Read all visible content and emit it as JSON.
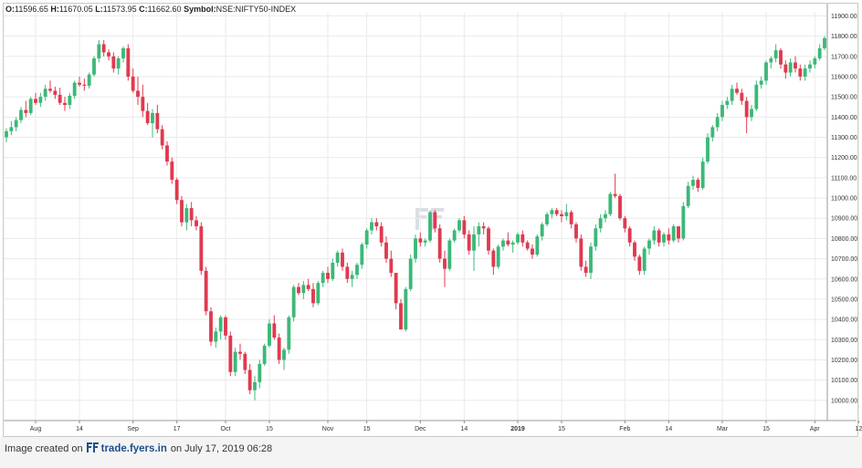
{
  "info": {
    "open_label": "O:",
    "open": "11596.65",
    "high_label": "H:",
    "high": "11670.05",
    "low_label": "L:",
    "low": "11573.95",
    "close_label": "C:",
    "close": "11662.60",
    "symbol_label": "Symbol:",
    "symbol": "NSE:NIFTY50-INDEX"
  },
  "footer": {
    "prefix": "Image created on",
    "site": "trade.fyers.in",
    "suffix": "on July 17, 2019 06:28"
  },
  "colors": {
    "up": "#3cb878",
    "down": "#e0394f",
    "grid": "#eaeaea"
  },
  "chart_data": {
    "type": "candlestick",
    "ylim": [
      9900,
      11920
    ],
    "y_ticks": [
      10000,
      10100,
      10200,
      10300,
      10400,
      10500,
      10600,
      10700,
      10800,
      10900,
      11000,
      11100,
      11200,
      11300,
      11400,
      11500,
      11600,
      11700,
      11800,
      11900
    ],
    "y_tick_labels": [
      "10000.00",
      "10100.00",
      "10200.00",
      "10300.00",
      "10400.00",
      "10500.00",
      "10600.00",
      "10700.00",
      "10800.00",
      "10900.00",
      "11000.00",
      "11100.00",
      "11200.00",
      "11300.00",
      "11400.00",
      "11500.00",
      "11600.00",
      "11700.00",
      "11800.00",
      "11900.00"
    ],
    "x_tick_labels": [
      {
        "label": "Aug",
        "index": 6,
        "bold": false
      },
      {
        "label": "14",
        "index": 15,
        "bold": false
      },
      {
        "label": "Sep",
        "index": 26,
        "bold": false
      },
      {
        "label": "17",
        "index": 35,
        "bold": false
      },
      {
        "label": "Oct",
        "index": 45,
        "bold": false
      },
      {
        "label": "15",
        "index": 54,
        "bold": false
      },
      {
        "label": "Nov",
        "index": 66,
        "bold": false
      },
      {
        "label": "15",
        "index": 74,
        "bold": false
      },
      {
        "label": "Dec",
        "index": 85,
        "bold": false
      },
      {
        "label": "14",
        "index": 94,
        "bold": false
      },
      {
        "label": "2019",
        "index": 105,
        "bold": true
      },
      {
        "label": "15",
        "index": 114,
        "bold": false
      },
      {
        "label": "Feb",
        "index": 127,
        "bold": false
      },
      {
        "label": "14",
        "index": 136,
        "bold": false
      },
      {
        "label": "Mar",
        "index": 147,
        "bold": false
      },
      {
        "label": "15",
        "index": 156,
        "bold": false
      },
      {
        "label": "Apr",
        "index": 166,
        "bold": false
      },
      {
        "label": "12",
        "index": 175,
        "bold": false
      }
    ],
    "candles": [
      [
        11300,
        11345,
        11275,
        11330
      ],
      [
        11330,
        11380,
        11310,
        11350
      ],
      [
        11350,
        11400,
        11330,
        11385
      ],
      [
        11385,
        11450,
        11370,
        11435
      ],
      [
        11435,
        11480,
        11400,
        11420
      ],
      [
        11420,
        11500,
        11410,
        11490
      ],
      [
        11490,
        11520,
        11460,
        11470
      ],
      [
        11470,
        11520,
        11450,
        11500
      ],
      [
        11500,
        11560,
        11480,
        11540
      ],
      [
        11540,
        11580,
        11520,
        11530
      ],
      [
        11530,
        11550,
        11490,
        11510
      ],
      [
        11510,
        11545,
        11460,
        11470
      ],
      [
        11470,
        11500,
        11430,
        11460
      ],
      [
        11460,
        11520,
        11440,
        11505
      ],
      [
        11505,
        11580,
        11490,
        11570
      ],
      [
        11570,
        11600,
        11550,
        11560
      ],
      [
        11560,
        11590,
        11530,
        11555
      ],
      [
        11555,
        11620,
        11540,
        11610
      ],
      [
        11610,
        11700,
        11600,
        11690
      ],
      [
        11690,
        11780,
        11670,
        11760
      ],
      [
        11760,
        11780,
        11700,
        11720
      ],
      [
        11720,
        11735,
        11680,
        11700
      ],
      [
        11700,
        11720,
        11620,
        11640
      ],
      [
        11640,
        11700,
        11610,
        11690
      ],
      [
        11690,
        11750,
        11670,
        11740
      ],
      [
        11740,
        11760,
        11580,
        11600
      ],
      [
        11600,
        11640,
        11520,
        11530
      ],
      [
        11530,
        11600,
        11460,
        11500
      ],
      [
        11500,
        11560,
        11400,
        11430
      ],
      [
        11430,
        11470,
        11360,
        11370
      ],
      [
        11370,
        11440,
        11300,
        11420
      ],
      [
        11420,
        11460,
        11320,
        11340
      ],
      [
        11340,
        11360,
        11240,
        11260
      ],
      [
        11260,
        11280,
        11160,
        11180
      ],
      [
        11180,
        11200,
        11070,
        11090
      ],
      [
        11090,
        11100,
        10970,
        10990
      ],
      [
        10990,
        11010,
        10860,
        10880
      ],
      [
        10880,
        10970,
        10840,
        10950
      ],
      [
        10950,
        10980,
        10860,
        10890
      ],
      [
        10890,
        10910,
        10840,
        10860
      ],
      [
        10860,
        10880,
        10620,
        10640
      ],
      [
        10640,
        10660,
        10420,
        10440
      ],
      [
        10440,
        10460,
        10270,
        10290
      ],
      [
        10290,
        10360,
        10260,
        10340
      ],
      [
        10340,
        10420,
        10300,
        10410
      ],
      [
        10410,
        10420,
        10300,
        10320
      ],
      [
        10320,
        10340,
        10120,
        10140
      ],
      [
        10140,
        10260,
        10120,
        10240
      ],
      [
        10240,
        10280,
        10200,
        10230
      ],
      [
        10230,
        10240,
        10130,
        10150
      ],
      [
        10150,
        10180,
        10030,
        10050
      ],
      [
        10050,
        10120,
        10000,
        10090
      ],
      [
        10090,
        10200,
        10060,
        10180
      ],
      [
        10180,
        10280,
        10170,
        10270
      ],
      [
        10270,
        10400,
        10260,
        10380
      ],
      [
        10380,
        10420,
        10300,
        10310
      ],
      [
        10310,
        10330,
        10180,
        10200
      ],
      [
        10200,
        10260,
        10150,
        10250
      ],
      [
        10250,
        10420,
        10230,
        10410
      ],
      [
        10410,
        10570,
        10390,
        10560
      ],
      [
        10560,
        10580,
        10520,
        10530
      ],
      [
        10530,
        10590,
        10500,
        10570
      ],
      [
        10570,
        10600,
        10540,
        10550
      ],
      [
        10550,
        10580,
        10460,
        10480
      ],
      [
        10480,
        10590,
        10470,
        10580
      ],
      [
        10580,
        10640,
        10560,
        10630
      ],
      [
        10630,
        10660,
        10580,
        10600
      ],
      [
        10600,
        10700,
        10590,
        10680
      ],
      [
        10680,
        10740,
        10660,
        10730
      ],
      [
        10730,
        10750,
        10640,
        10660
      ],
      [
        10660,
        10680,
        10580,
        10600
      ],
      [
        10600,
        10640,
        10560,
        10620
      ],
      [
        10620,
        10680,
        10600,
        10670
      ],
      [
        10670,
        10780,
        10650,
        10770
      ],
      [
        10770,
        10850,
        10750,
        10840
      ],
      [
        10840,
        10900,
        10820,
        10880
      ],
      [
        10880,
        10900,
        10840,
        10860
      ],
      [
        10860,
        10880,
        10760,
        10780
      ],
      [
        10780,
        10810,
        10680,
        10700
      ],
      [
        10700,
        10740,
        10610,
        10630
      ],
      [
        10630,
        10620,
        10450,
        10480
      ],
      [
        10480,
        10500,
        10350,
        10350
      ],
      [
        10350,
        10560,
        10340,
        10550
      ],
      [
        10550,
        10720,
        10540,
        10700
      ],
      [
        10700,
        10820,
        10680,
        10800
      ],
      [
        10800,
        10830,
        10760,
        10780
      ],
      [
        10780,
        10800,
        10760,
        10790
      ],
      [
        10790,
        10940,
        10780,
        10930
      ],
      [
        10930,
        10940,
        10830,
        10850
      ],
      [
        10850,
        10870,
        10680,
        10700
      ],
      [
        10700,
        10740,
        10560,
        10650
      ],
      [
        10650,
        10800,
        10640,
        10790
      ],
      [
        10790,
        10850,
        10780,
        10840
      ],
      [
        10840,
        10900,
        10830,
        10890
      ],
      [
        10890,
        10910,
        10800,
        10820
      ],
      [
        10820,
        10840,
        10720,
        10740
      ],
      [
        10740,
        10860,
        10640,
        10820
      ],
      [
        10820,
        10880,
        10760,
        10860
      ],
      [
        10860,
        10880,
        10820,
        10850
      ],
      [
        10850,
        10860,
        10720,
        10740
      ],
      [
        10740,
        10750,
        10620,
        10660
      ],
      [
        10660,
        10770,
        10650,
        10760
      ],
      [
        10760,
        10800,
        10740,
        10790
      ],
      [
        10790,
        10830,
        10760,
        10770
      ],
      [
        10770,
        10790,
        10730,
        10780
      ],
      [
        10780,
        10830,
        10770,
        10820
      ],
      [
        10820,
        10840,
        10760,
        10780
      ],
      [
        10780,
        10790,
        10740,
        10750
      ],
      [
        10750,
        10770,
        10700,
        10720
      ],
      [
        10720,
        10820,
        10710,
        10810
      ],
      [
        10810,
        10880,
        10790,
        10870
      ],
      [
        10870,
        10930,
        10860,
        10920
      ],
      [
        10920,
        10950,
        10900,
        10940
      ],
      [
        10940,
        10950,
        10910,
        10920
      ],
      [
        10920,
        10940,
        10880,
        10910
      ],
      [
        10910,
        10970,
        10890,
        10930
      ],
      [
        10930,
        10940,
        10850,
        10870
      ],
      [
        10870,
        10880,
        10780,
        10800
      ],
      [
        10800,
        10820,
        10640,
        10660
      ],
      [
        10660,
        10690,
        10610,
        10630
      ],
      [
        10630,
        10780,
        10600,
        10760
      ],
      [
        10760,
        10870,
        10740,
        10850
      ],
      [
        10850,
        10920,
        10830,
        10900
      ],
      [
        10900,
        10940,
        10880,
        10920
      ],
      [
        10920,
        11030,
        10910,
        11020
      ],
      [
        11020,
        11120,
        11000,
        11010
      ],
      [
        11010,
        11020,
        10890,
        10900
      ],
      [
        10900,
        10910,
        10830,
        10850
      ],
      [
        10850,
        10860,
        10760,
        10780
      ],
      [
        10780,
        10790,
        10690,
        10710
      ],
      [
        10710,
        10720,
        10620,
        10640
      ],
      [
        10640,
        10760,
        10620,
        10750
      ],
      [
        10750,
        10800,
        10720,
        10790
      ],
      [
        10790,
        10860,
        10770,
        10840
      ],
      [
        10840,
        10850,
        10760,
        10780
      ],
      [
        10780,
        10830,
        10760,
        10820
      ],
      [
        10820,
        10850,
        10770,
        10790
      ],
      [
        10790,
        10870,
        10780,
        10860
      ],
      [
        10860,
        10850,
        10780,
        10800
      ],
      [
        10800,
        10980,
        10790,
        10960
      ],
      [
        10960,
        11080,
        10950,
        11060
      ],
      [
        11060,
        11110,
        11040,
        11090
      ],
      [
        11090,
        11100,
        11030,
        11050
      ],
      [
        11050,
        11200,
        11040,
        11180
      ],
      [
        11180,
        11320,
        11170,
        11300
      ],
      [
        11300,
        11360,
        11280,
        11350
      ],
      [
        11350,
        11420,
        11330,
        11400
      ],
      [
        11400,
        11480,
        11380,
        11460
      ],
      [
        11460,
        11500,
        11440,
        11480
      ],
      [
        11480,
        11560,
        11460,
        11540
      ],
      [
        11540,
        11570,
        11510,
        11520
      ],
      [
        11520,
        11540,
        11460,
        11480
      ],
      [
        11480,
        11500,
        11320,
        11400
      ],
      [
        11400,
        11460,
        11380,
        11440
      ],
      [
        11440,
        11580,
        11430,
        11560
      ],
      [
        11560,
        11600,
        11540,
        11580
      ],
      [
        11580,
        11680,
        11560,
        11670
      ],
      [
        11670,
        11700,
        11640,
        11690
      ],
      [
        11690,
        11760,
        11670,
        11730
      ],
      [
        11730,
        11740,
        11640,
        11660
      ],
      [
        11660,
        11680,
        11590,
        11620
      ],
      [
        11620,
        11690,
        11600,
        11670
      ],
      [
        11670,
        11700,
        11620,
        11640
      ],
      [
        11640,
        11660,
        11580,
        11600
      ],
      [
        11600,
        11660,
        11580,
        11640
      ],
      [
        11640,
        11680,
        11620,
        11660
      ],
      [
        11660,
        11700,
        11640,
        11690
      ],
      [
        11690,
        11760,
        11680,
        11740
      ],
      [
        11740,
        11800,
        11730,
        11790
      ]
    ]
  }
}
